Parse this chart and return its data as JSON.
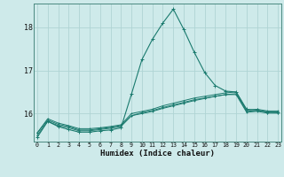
{
  "xlabel": "Humidex (Indice chaleur)",
  "bg_color": "#ceeaea",
  "grid_color": "#afd4d4",
  "line_color": "#1a7a6e",
  "x_ticks": [
    0,
    1,
    2,
    3,
    4,
    5,
    6,
    7,
    8,
    9,
    10,
    11,
    12,
    13,
    14,
    15,
    16,
    17,
    18,
    19,
    20,
    21,
    22,
    23
  ],
  "y_ticks": [
    16,
    17,
    18
  ],
  "ylim": [
    15.35,
    18.55
  ],
  "xlim": [
    -0.3,
    23.3
  ],
  "series": [
    [
      15.55,
      15.85,
      15.75,
      15.7,
      15.62,
      15.62,
      15.65,
      15.68,
      15.72,
      15.95,
      16.0,
      16.05,
      16.12,
      16.18,
      16.24,
      16.3,
      16.35,
      16.4,
      16.44,
      16.46,
      16.05,
      16.07,
      16.04,
      16.04
    ],
    [
      15.55,
      15.88,
      15.78,
      15.72,
      15.65,
      15.65,
      15.67,
      15.7,
      15.74,
      16.0,
      16.05,
      16.1,
      16.18,
      16.24,
      16.3,
      16.36,
      16.4,
      16.44,
      16.48,
      16.5,
      16.08,
      16.1,
      16.06,
      16.06
    ],
    [
      15.5,
      15.82,
      15.72,
      15.67,
      15.6,
      15.6,
      15.63,
      15.66,
      15.7,
      15.95,
      16.02,
      16.07,
      16.14,
      16.2,
      16.26,
      16.32,
      16.36,
      16.4,
      16.44,
      16.44,
      16.03,
      16.05,
      16.01,
      16.01
    ],
    [
      15.45,
      15.82,
      15.7,
      15.63,
      15.57,
      15.57,
      15.6,
      15.62,
      15.67,
      16.45,
      17.25,
      17.72,
      18.1,
      18.42,
      17.95,
      17.42,
      16.95,
      16.65,
      16.52,
      16.5,
      16.1,
      16.08,
      16.03,
      16.02
    ]
  ]
}
